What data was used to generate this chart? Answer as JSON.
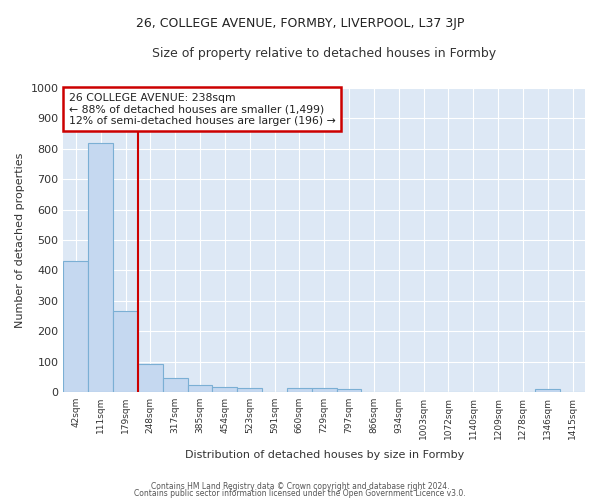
{
  "title": "26, COLLEGE AVENUE, FORMBY, LIVERPOOL, L37 3JP",
  "subtitle": "Size of property relative to detached houses in Formby",
  "xlabel": "Distribution of detached houses by size in Formby",
  "ylabel": "Number of detached properties",
  "categories": [
    "42sqm",
    "111sqm",
    "179sqm",
    "248sqm",
    "317sqm",
    "385sqm",
    "454sqm",
    "523sqm",
    "591sqm",
    "660sqm",
    "729sqm",
    "797sqm",
    "866sqm",
    "934sqm",
    "1003sqm",
    "1072sqm",
    "1140sqm",
    "1209sqm",
    "1278sqm",
    "1346sqm",
    "1415sqm"
  ],
  "values": [
    430,
    820,
    265,
    93,
    47,
    22,
    15,
    12,
    0,
    12,
    12,
    10,
    0,
    0,
    0,
    0,
    0,
    0,
    0,
    10,
    0
  ],
  "bar_color": "#c5d8f0",
  "bar_edge_color": "#7bafd4",
  "vline_color": "#cc0000",
  "vline_pos": 2.5,
  "annotation_title": "26 COLLEGE AVENUE: 238sqm",
  "annotation_line1": "← 88% of detached houses are smaller (1,499)",
  "annotation_line2": "12% of semi-detached houses are larger (196) →",
  "annotation_box_color": "#cc0000",
  "annotation_bg": "#ffffff",
  "plot_bg_color": "#dde8f5",
  "fig_bg_color": "#ffffff",
  "grid_color": "#ffffff",
  "ylim": [
    0,
    1000
  ],
  "yticks": [
    0,
    100,
    200,
    300,
    400,
    500,
    600,
    700,
    800,
    900,
    1000
  ],
  "footer_line1": "Contains HM Land Registry data © Crown copyright and database right 2024.",
  "footer_line2": "Contains public sector information licensed under the Open Government Licence v3.0."
}
